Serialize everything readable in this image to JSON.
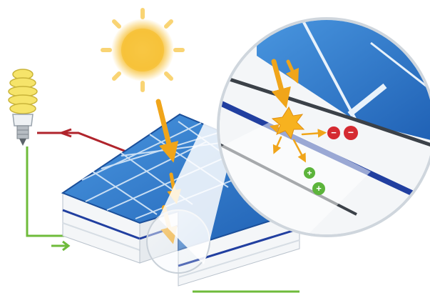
{
  "diagram": {
    "elements": {
      "sun": "sun-icon",
      "bulb": "light-bulb-icon",
      "panel": "solar-panel",
      "magnifier": "magnifier-callout",
      "photon_arrows": "sunlight-arrow",
      "electrons": "electron-icon",
      "holes": "hole-icon"
    },
    "symbols": {
      "electron": "−",
      "hole": "+"
    },
    "colors": {
      "sun": "#f7c23a",
      "arrow": "#f0a51a",
      "cell_blue": "#2f78c8",
      "cell_dark": "#1b4f9a",
      "layer_blue": "#213fa0",
      "wire_red": "#b0242c",
      "wire_green": "#6fbb3b",
      "electron_red": "#d52a31",
      "hole_green": "#5cb43b",
      "bulb_yellow": "#f6e46a"
    }
  }
}
